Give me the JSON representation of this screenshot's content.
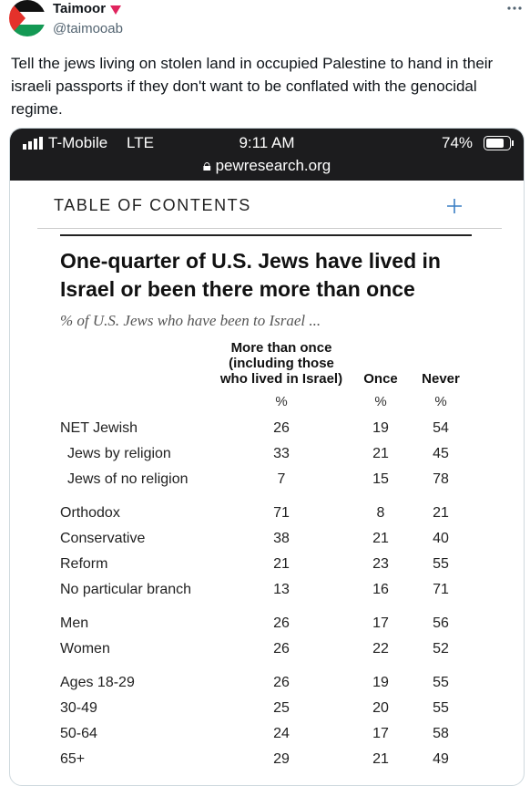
{
  "tweet": {
    "author": "Taimoor",
    "handle": "@taimooab",
    "text": "Tell the jews living on stolen land in occupied Palestine to hand in their israeli passports if they don't want to be conflated with the genocidal regime."
  },
  "screenshot": {
    "status_bar": {
      "carrier": "T-Mobile",
      "network": "LTE",
      "time": "9:11 AM",
      "battery": "74%",
      "url": "pewresearch.org"
    },
    "toc": "TABLE OF CONTENTS",
    "table": {
      "title": "One-quarter of U.S. Jews have lived in Israel or been there more than once",
      "subtitle": "% of U.S. Jews who have been to Israel ...",
      "columns": [
        {
          "lines": [
            "More than once",
            "(including those",
            "who lived in Israel)"
          ],
          "unit": "%"
        },
        {
          "lines": [
            "Once"
          ],
          "unit": "%"
        },
        {
          "lines": [
            "Never"
          ],
          "unit": "%"
        }
      ],
      "groups": [
        [
          {
            "label": "NET Jewish",
            "values": [
              26,
              19,
              54
            ]
          },
          {
            "label": "Jews by religion",
            "values": [
              33,
              21,
              45
            ]
          },
          {
            "label": "Jews of no religion",
            "values": [
              7,
              15,
              78
            ]
          }
        ],
        [
          {
            "label": "Orthodox",
            "values": [
              71,
              8,
              21
            ]
          },
          {
            "label": "Conservative",
            "values": [
              38,
              21,
              40
            ]
          },
          {
            "label": "Reform",
            "values": [
              21,
              23,
              55
            ]
          },
          {
            "label": "No particular branch",
            "values": [
              13,
              16,
              71
            ]
          }
        ],
        [
          {
            "label": "Men",
            "values": [
              26,
              17,
              56
            ]
          },
          {
            "label": "Women",
            "values": [
              26,
              22,
              52
            ]
          }
        ],
        [
          {
            "label": "Ages 18-29",
            "values": [
              26,
              19,
              55
            ]
          },
          {
            "label": "30-49",
            "values": [
              25,
              20,
              55
            ]
          },
          {
            "label": "50-64",
            "values": [
              24,
              17,
              58
            ]
          },
          {
            "label": "65+",
            "values": [
              29,
              21,
              49
            ]
          }
        ]
      ]
    }
  }
}
